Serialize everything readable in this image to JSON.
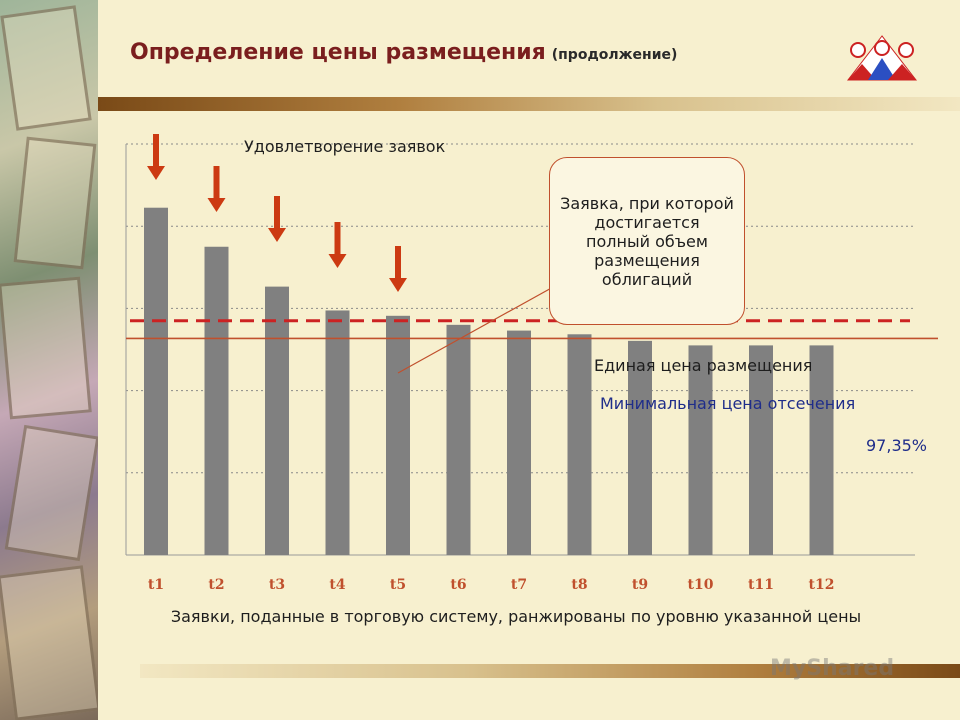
{
  "header": {
    "title": "Определение цены размещения",
    "subtitle": "(продолжение)"
  },
  "annotations": {
    "demand_satisfaction": "Удовлетворение заявок",
    "callout": "Заявка, при которой достигается полный объем размещения облигаций",
    "uniform_price": "Единая цена размещения",
    "min_cutoff": "Минимальная цена отсечения",
    "min_cutoff_value": "97,35%"
  },
  "caption": "Заявки, поданные в торговую систему, ранжированы по уровню указанной цены",
  "watermark": "MyShared",
  "colors": {
    "title": "#7a1e1e",
    "bar": "#808080",
    "arrow": "#cc3a12",
    "uniform_line": "#cc2222",
    "cutoff_line": "#c0502d",
    "cutoff_label": "#1f2d8a",
    "axis_label": "#c0502d"
  },
  "chart_data": {
    "type": "bar",
    "categories": [
      "t1",
      "t2",
      "t3",
      "t4",
      "t5",
      "t6",
      "t7",
      "t8",
      "t9",
      "t10",
      "t11",
      "t12"
    ],
    "values": [
      104.5,
      95.0,
      85.3,
      79.5,
      78.2,
      76.0,
      74.6,
      73.7,
      72.1,
      71.0,
      71.0,
      71.0
    ],
    "ylim": [
      20,
      120
    ],
    "grid": true,
    "highlighted_categories": [
      "t1",
      "t2",
      "t3",
      "t4",
      "t5"
    ],
    "reference_lines": [
      {
        "name": "Единая цена размещения",
        "value": 77.0,
        "style": "dashed"
      },
      {
        "name": "Минимальная цена отсечения",
        "value": 72.7,
        "style": "solid"
      }
    ]
  }
}
